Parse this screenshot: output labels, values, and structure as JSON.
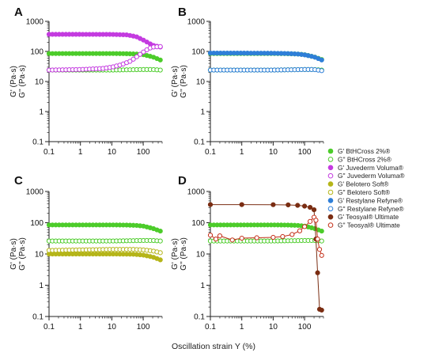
{
  "figure": {
    "xlabel": "Oscillation strain Υ (%)",
    "ylabel_line1": "G' (Pa·s)",
    "ylabel_line2": "G'' (Pa·s)"
  },
  "legend": [
    {
      "label": "G' BtHCross 2%®",
      "color": "#4ccc2a",
      "filled": true
    },
    {
      "label": "G'' BtHCross 2%®",
      "color": "#4ccc2a",
      "filled": false
    },
    {
      "label": "G' Juvederm Voluma®",
      "color": "#c43be0",
      "filled": true
    },
    {
      "label": "G'' Juvederm Voluma®",
      "color": "#c43be0",
      "filled": false
    },
    {
      "label": "G' Belotero Soft®",
      "color": "#b5b519",
      "filled": true
    },
    {
      "label": "G'' Belotero Soft®",
      "color": "#b5b519",
      "filled": false
    },
    {
      "label": "G' Restylane Refyne®",
      "color": "#2f7fd8",
      "filled": true
    },
    {
      "label": "G'' Restylane Refyne®",
      "color": "#2f7fd8",
      "filled": false
    },
    {
      "label": "G' Teosyal® Ultimate",
      "color": "#7a2d12",
      "filled": true
    },
    {
      "label": "G'' Teosyal® Ultimate",
      "color": "#c4301a",
      "filled": false
    }
  ],
  "chart_data": [
    {
      "panel": "A",
      "type": "scatter",
      "xscale": "log",
      "yscale": "log",
      "xlim": [
        0.1,
        400
      ],
      "ylim": [
        0.1,
        1000
      ],
      "xticks": [
        "0.1",
        "1",
        "10",
        "100"
      ],
      "yticks": [
        "0.1",
        "1",
        "10",
        "100",
        "1000"
      ],
      "series": [
        {
          "name": "G' BtHCross 2%®",
          "color": "#4ccc2a",
          "filled": true,
          "x": [
            0.1,
            1,
            10,
            30,
            60,
            100,
            200,
            350
          ],
          "y": [
            85,
            85,
            85,
            84,
            82,
            78,
            66,
            52
          ]
        },
        {
          "name": "G'' BtHCross 2%®",
          "color": "#4ccc2a",
          "filled": false,
          "x": [
            0.1,
            1,
            10,
            100,
            200,
            350
          ],
          "y": [
            24,
            24,
            24,
            25,
            25,
            24
          ]
        },
        {
          "name": "G' Juvederm Voluma®",
          "color": "#c43be0",
          "filled": true,
          "x": [
            0.1,
            1,
            10,
            30,
            60,
            100,
            150,
            200,
            350
          ],
          "y": [
            370,
            370,
            368,
            355,
            310,
            240,
            190,
            160,
            140
          ]
        },
        {
          "name": "G'' Juvederm Voluma®",
          "color": "#c43be0",
          "filled": false,
          "x": [
            0.1,
            1,
            5,
            10,
            20,
            40,
            60,
            100,
            150,
            200,
            350
          ],
          "y": [
            24,
            25,
            27,
            30,
            36,
            48,
            65,
            95,
            125,
            140,
            145
          ]
        }
      ]
    },
    {
      "panel": "B",
      "type": "scatter",
      "xscale": "log",
      "yscale": "log",
      "xlim": [
        0.1,
        400
      ],
      "ylim": [
        0.1,
        1000
      ],
      "xticks": [
        "0.1",
        "1",
        "10",
        "100"
      ],
      "yticks": [
        "0.1",
        "1",
        "10",
        "100",
        "1000"
      ],
      "series": [
        {
          "name": "G' BtHCross 2%®",
          "color": "#4ccc2a",
          "filled": true,
          "x": [
            0.1,
            1,
            10,
            30,
            60,
            100,
            200,
            350
          ],
          "y": [
            85,
            85,
            85,
            84,
            82,
            78,
            66,
            54
          ]
        },
        {
          "name": "G'' BtHCross 2%®",
          "color": "#4ccc2a",
          "filled": false,
          "x": [
            0.1,
            1,
            10,
            100,
            200,
            350
          ],
          "y": [
            24,
            24,
            24,
            25,
            25,
            24
          ]
        },
        {
          "name": "G' Restylane Refyne®",
          "color": "#2f7fd8",
          "filled": true,
          "x": [
            0.1,
            1,
            10,
            30,
            60,
            100,
            200,
            350
          ],
          "y": [
            88,
            88,
            87,
            85,
            82,
            77,
            66,
            52
          ]
        },
        {
          "name": "G'' Restylane Refyne®",
          "color": "#2f7fd8",
          "filled": false,
          "x": [
            0.1,
            1,
            10,
            100,
            200,
            350
          ],
          "y": [
            24,
            24,
            24,
            25,
            25,
            23
          ]
        }
      ]
    },
    {
      "panel": "C",
      "type": "scatter",
      "xscale": "log",
      "yscale": "log",
      "xlim": [
        0.1,
        400
      ],
      "ylim": [
        0.1,
        1000
      ],
      "xticks": [
        "0.1",
        "1",
        "10",
        "100"
      ],
      "yticks": [
        "0.1",
        "1",
        "10",
        "100",
        "1000"
      ],
      "series": [
        {
          "name": "G' BtHCross 2%®",
          "color": "#4ccc2a",
          "filled": true,
          "x": [
            0.1,
            1,
            10,
            30,
            60,
            100,
            200,
            350
          ],
          "y": [
            85,
            85,
            85,
            84,
            82,
            78,
            66,
            54
          ]
        },
        {
          "name": "G'' BtHCross 2%®",
          "color": "#4ccc2a",
          "filled": false,
          "x": [
            0.1,
            1,
            10,
            100,
            200,
            350
          ],
          "y": [
            26,
            26,
            26,
            27,
            27,
            26
          ]
        },
        {
          "name": "G' Belotero Soft®",
          "color": "#b5b519",
          "filled": true,
          "x": [
            0.1,
            1,
            10,
            50,
            100,
            200,
            350
          ],
          "y": [
            10,
            10,
            10,
            9.8,
            9.2,
            8,
            6.5
          ]
        },
        {
          "name": "G'' Belotero Soft®",
          "color": "#b5b519",
          "filled": false,
          "x": [
            0.1,
            1,
            10,
            50,
            100,
            200,
            350
          ],
          "y": [
            13,
            13.5,
            14,
            14,
            13.5,
            12.5,
            11
          ]
        }
      ]
    },
    {
      "panel": "D",
      "type": "scatter",
      "xscale": "log",
      "yscale": "log",
      "xlim": [
        0.1,
        400
      ],
      "ylim": [
        0.1,
        1000
      ],
      "xticks": [
        "0.1",
        "1",
        "10",
        "100"
      ],
      "yticks": [
        "0.1",
        "1",
        "10",
        "100",
        "1000"
      ],
      "series": [
        {
          "name": "G' BtHCross 2%®",
          "color": "#4ccc2a",
          "filled": true,
          "x": [
            0.1,
            1,
            10,
            30,
            60,
            100,
            200,
            350
          ],
          "y": [
            85,
            85,
            85,
            84,
            82,
            78,
            66,
            54
          ]
        },
        {
          "name": "G'' BtHCross 2%®",
          "color": "#4ccc2a",
          "filled": false,
          "x": [
            0.1,
            1,
            10,
            100,
            200,
            350
          ],
          "y": [
            26,
            26,
            26,
            27,
            27,
            26
          ]
        },
        {
          "name": "G' Teosyal® Ultimate",
          "color": "#7a2d12",
          "filled": true,
          "connected": true,
          "x": [
            0.1,
            1,
            10,
            30,
            60,
            100,
            150,
            200,
            230,
            260,
            300,
            350
          ],
          "y": [
            380,
            380,
            378,
            372,
            360,
            340,
            310,
            260,
            30,
            2.5,
            0.17,
            0.16
          ]
        },
        {
          "name": "G'' Teosyal® Ultimate",
          "color": "#c4301a",
          "filled": false,
          "connected": true,
          "x": [
            0.1,
            0.15,
            0.2,
            0.5,
            1,
            3,
            10,
            20,
            40,
            70,
            100,
            150,
            200,
            230,
            260,
            300,
            350
          ],
          "y": [
            40,
            30,
            38,
            28,
            32,
            33,
            34,
            36,
            42,
            55,
            75,
            110,
            150,
            120,
            30,
            14,
            9
          ]
        }
      ]
    }
  ]
}
